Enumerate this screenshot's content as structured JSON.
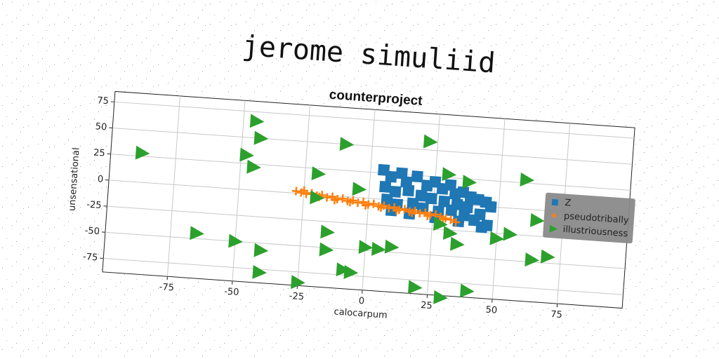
{
  "title": "jerome simuliid",
  "chart_data": {
    "type": "scatter",
    "title": "counterproject",
    "xlabel": "calocarpum",
    "ylabel": "unsensational",
    "xlim": [
      -100,
      100
    ],
    "ylim": [
      -88,
      85
    ],
    "xticks": [
      -75,
      -50,
      -25,
      0,
      25,
      50,
      75
    ],
    "yticks": [
      -75,
      -50,
      -25,
      0,
      25,
      50,
      75
    ],
    "grid": true,
    "legend": "center right",
    "series": [
      {
        "name": "Z",
        "color": "#1f77b4",
        "marker": "square",
        "x": [
          5,
          8,
          12,
          14,
          18,
          22,
          25,
          28,
          31,
          33,
          36,
          39,
          42,
          45,
          47,
          6,
          10,
          15,
          20,
          24,
          29,
          34,
          38,
          43,
          7,
          11,
          17,
          21,
          27,
          32,
          37,
          41,
          46,
          9,
          16,
          26,
          35,
          44
        ],
        "y": [
          28,
          22,
          26,
          18,
          24,
          16,
          20,
          14,
          18,
          10,
          12,
          8,
          6,
          4,
          0,
          12,
          8,
          10,
          6,
          4,
          2,
          0,
          -2,
          -8,
          0,
          -4,
          -2,
          -6,
          -8,
          -6,
          -10,
          -14,
          -18,
          -10,
          -12,
          -14,
          -16,
          -20
        ]
      },
      {
        "name": "pseudotribally",
        "color": "#ff7f0e",
        "marker": "plus",
        "x": [
          -28,
          -26,
          -24,
          -22,
          -20,
          -18,
          -16,
          -14,
          -12,
          -10,
          -8,
          -6,
          -4,
          -2,
          0,
          2,
          4,
          6,
          8,
          10,
          12,
          14,
          16,
          18,
          20,
          22,
          24,
          26,
          28,
          30,
          32,
          34,
          -25,
          -19,
          -13,
          -7,
          -1,
          5,
          11,
          17,
          23,
          29
        ],
        "y": [
          2,
          1,
          0,
          1,
          -1,
          0,
          -2,
          -1,
          -3,
          -2,
          -4,
          -3,
          -5,
          -4,
          -6,
          -5,
          -7,
          -6,
          -8,
          -7,
          -9,
          -8,
          -10,
          -9,
          -11,
          -10,
          -12,
          -11,
          -13,
          -14,
          -15,
          -17,
          3,
          -2,
          -4,
          -5,
          -7,
          -8,
          -10,
          -11,
          -13,
          -15
        ]
      },
      {
        "name": "illustriousness",
        "color": "#2ca02c",
        "marker": "triangle-right",
        "x": [
          -88,
          -45,
          -43,
          -48,
          -45,
          -10,
          -20,
          22,
          30,
          38,
          60,
          -4,
          -20,
          65,
          55,
          50,
          32,
          35,
          28,
          -15,
          -15,
          0,
          5,
          10,
          -65,
          -50,
          -40,
          -40,
          -25,
          -8,
          -5,
          20,
          30,
          40,
          64,
          70
        ],
        "y": [
          28,
          66,
          50,
          33,
          22,
          50,
          20,
          58,
          28,
          22,
          28,
          8,
          -3,
          -10,
          -25,
          -30,
          -28,
          -38,
          -20,
          -35,
          -52,
          -47,
          -48,
          -45,
          -45,
          -50,
          -57,
          -78,
          -85,
          -70,
          -72,
          -82,
          -90,
          -82,
          -48,
          -44
        ]
      }
    ]
  }
}
